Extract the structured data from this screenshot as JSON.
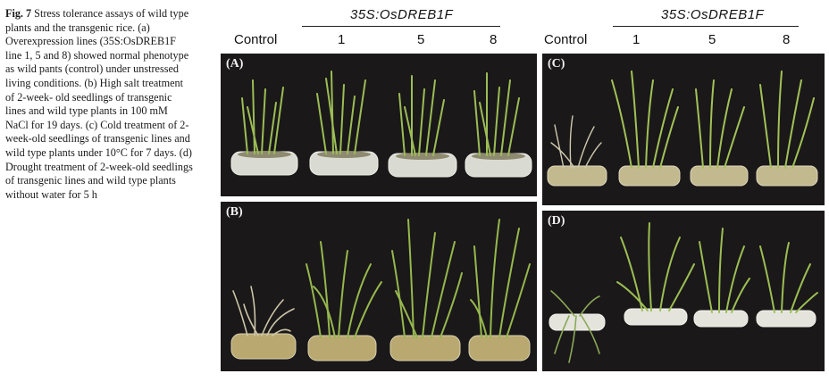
{
  "figure": {
    "caption_label": "Fig. 7",
    "caption_lines": [
      "Stress tolerance assays",
      "of wild type plants and the",
      "transgenic rice. (a)",
      "Overexpression lines",
      "(35S:OsDREB1F line 1, 5 and",
      "8) showed normal phenotype as",
      "wild pants (control) under",
      "unstressed living conditions. (b)",
      "High salt treatment of 2-week-",
      "old seedlings of transgenic lines",
      "and wild type plants in 100 mM",
      "NaCl for 19 days. (c) Cold",
      "treatment of 2-week-old",
      "seedlings of transgenic lines and",
      "wild type plants under 10°C for",
      "7 days. (d) Drought treatment of",
      "2-week-old seedlings of",
      "transgenic lines and wild type",
      "plants without water for 5 h"
    ],
    "left_header": {
      "construct": "35S:OsDREB1F",
      "labels": [
        "Control",
        "1",
        "5",
        "8"
      ]
    },
    "right_header": {
      "construct": "35S:OsDREB1F",
      "labels": [
        "Control",
        "1",
        "5",
        "8"
      ]
    },
    "panels": [
      {
        "label": "(A)"
      },
      {
        "label": "(B)"
      },
      {
        "label": "(C)"
      },
      {
        "label": "(D)"
      }
    ],
    "colors": {
      "background_dark": "#1a1818",
      "leaf_green": "#8fb04a",
      "leaf_dry": "#c9c2a6",
      "dish": "#d8d8cc"
    }
  }
}
